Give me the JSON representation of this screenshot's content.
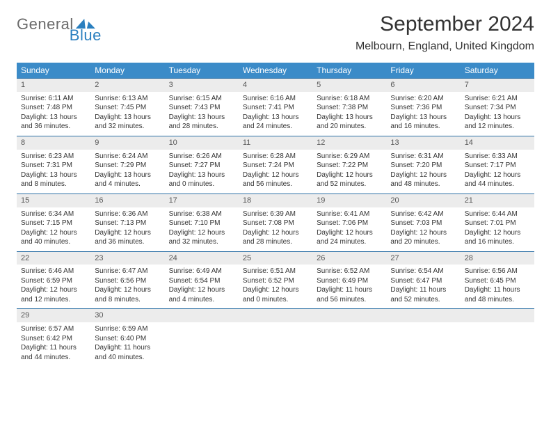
{
  "logo": {
    "general": "General",
    "blue": "Blue"
  },
  "header": {
    "title": "September 2024",
    "location": "Melbourn, England, United Kingdom"
  },
  "style": {
    "header_bg": "#3b8bc8",
    "header_text": "#ffffff",
    "row_border": "#2a6fa5",
    "daynum_bg": "#ececec",
    "body_text": "#333333"
  },
  "day_headers": [
    "Sunday",
    "Monday",
    "Tuesday",
    "Wednesday",
    "Thursday",
    "Friday",
    "Saturday"
  ],
  "weeks": [
    [
      {
        "n": "1",
        "sr": "Sunrise: 6:11 AM",
        "ss": "Sunset: 7:48 PM",
        "dl1": "Daylight: 13 hours",
        "dl2": "and 36 minutes."
      },
      {
        "n": "2",
        "sr": "Sunrise: 6:13 AM",
        "ss": "Sunset: 7:45 PM",
        "dl1": "Daylight: 13 hours",
        "dl2": "and 32 minutes."
      },
      {
        "n": "3",
        "sr": "Sunrise: 6:15 AM",
        "ss": "Sunset: 7:43 PM",
        "dl1": "Daylight: 13 hours",
        "dl2": "and 28 minutes."
      },
      {
        "n": "4",
        "sr": "Sunrise: 6:16 AM",
        "ss": "Sunset: 7:41 PM",
        "dl1": "Daylight: 13 hours",
        "dl2": "and 24 minutes."
      },
      {
        "n": "5",
        "sr": "Sunrise: 6:18 AM",
        "ss": "Sunset: 7:38 PM",
        "dl1": "Daylight: 13 hours",
        "dl2": "and 20 minutes."
      },
      {
        "n": "6",
        "sr": "Sunrise: 6:20 AM",
        "ss": "Sunset: 7:36 PM",
        "dl1": "Daylight: 13 hours",
        "dl2": "and 16 minutes."
      },
      {
        "n": "7",
        "sr": "Sunrise: 6:21 AM",
        "ss": "Sunset: 7:34 PM",
        "dl1": "Daylight: 13 hours",
        "dl2": "and 12 minutes."
      }
    ],
    [
      {
        "n": "8",
        "sr": "Sunrise: 6:23 AM",
        "ss": "Sunset: 7:31 PM",
        "dl1": "Daylight: 13 hours",
        "dl2": "and 8 minutes."
      },
      {
        "n": "9",
        "sr": "Sunrise: 6:24 AM",
        "ss": "Sunset: 7:29 PM",
        "dl1": "Daylight: 13 hours",
        "dl2": "and 4 minutes."
      },
      {
        "n": "10",
        "sr": "Sunrise: 6:26 AM",
        "ss": "Sunset: 7:27 PM",
        "dl1": "Daylight: 13 hours",
        "dl2": "and 0 minutes."
      },
      {
        "n": "11",
        "sr": "Sunrise: 6:28 AM",
        "ss": "Sunset: 7:24 PM",
        "dl1": "Daylight: 12 hours",
        "dl2": "and 56 minutes."
      },
      {
        "n": "12",
        "sr": "Sunrise: 6:29 AM",
        "ss": "Sunset: 7:22 PM",
        "dl1": "Daylight: 12 hours",
        "dl2": "and 52 minutes."
      },
      {
        "n": "13",
        "sr": "Sunrise: 6:31 AM",
        "ss": "Sunset: 7:20 PM",
        "dl1": "Daylight: 12 hours",
        "dl2": "and 48 minutes."
      },
      {
        "n": "14",
        "sr": "Sunrise: 6:33 AM",
        "ss": "Sunset: 7:17 PM",
        "dl1": "Daylight: 12 hours",
        "dl2": "and 44 minutes."
      }
    ],
    [
      {
        "n": "15",
        "sr": "Sunrise: 6:34 AM",
        "ss": "Sunset: 7:15 PM",
        "dl1": "Daylight: 12 hours",
        "dl2": "and 40 minutes."
      },
      {
        "n": "16",
        "sr": "Sunrise: 6:36 AM",
        "ss": "Sunset: 7:13 PM",
        "dl1": "Daylight: 12 hours",
        "dl2": "and 36 minutes."
      },
      {
        "n": "17",
        "sr": "Sunrise: 6:38 AM",
        "ss": "Sunset: 7:10 PM",
        "dl1": "Daylight: 12 hours",
        "dl2": "and 32 minutes."
      },
      {
        "n": "18",
        "sr": "Sunrise: 6:39 AM",
        "ss": "Sunset: 7:08 PM",
        "dl1": "Daylight: 12 hours",
        "dl2": "and 28 minutes."
      },
      {
        "n": "19",
        "sr": "Sunrise: 6:41 AM",
        "ss": "Sunset: 7:06 PM",
        "dl1": "Daylight: 12 hours",
        "dl2": "and 24 minutes."
      },
      {
        "n": "20",
        "sr": "Sunrise: 6:42 AM",
        "ss": "Sunset: 7:03 PM",
        "dl1": "Daylight: 12 hours",
        "dl2": "and 20 minutes."
      },
      {
        "n": "21",
        "sr": "Sunrise: 6:44 AM",
        "ss": "Sunset: 7:01 PM",
        "dl1": "Daylight: 12 hours",
        "dl2": "and 16 minutes."
      }
    ],
    [
      {
        "n": "22",
        "sr": "Sunrise: 6:46 AM",
        "ss": "Sunset: 6:59 PM",
        "dl1": "Daylight: 12 hours",
        "dl2": "and 12 minutes."
      },
      {
        "n": "23",
        "sr": "Sunrise: 6:47 AM",
        "ss": "Sunset: 6:56 PM",
        "dl1": "Daylight: 12 hours",
        "dl2": "and 8 minutes."
      },
      {
        "n": "24",
        "sr": "Sunrise: 6:49 AM",
        "ss": "Sunset: 6:54 PM",
        "dl1": "Daylight: 12 hours",
        "dl2": "and 4 minutes."
      },
      {
        "n": "25",
        "sr": "Sunrise: 6:51 AM",
        "ss": "Sunset: 6:52 PM",
        "dl1": "Daylight: 12 hours",
        "dl2": "and 0 minutes."
      },
      {
        "n": "26",
        "sr": "Sunrise: 6:52 AM",
        "ss": "Sunset: 6:49 PM",
        "dl1": "Daylight: 11 hours",
        "dl2": "and 56 minutes."
      },
      {
        "n": "27",
        "sr": "Sunrise: 6:54 AM",
        "ss": "Sunset: 6:47 PM",
        "dl1": "Daylight: 11 hours",
        "dl2": "and 52 minutes."
      },
      {
        "n": "28",
        "sr": "Sunrise: 6:56 AM",
        "ss": "Sunset: 6:45 PM",
        "dl1": "Daylight: 11 hours",
        "dl2": "and 48 minutes."
      }
    ],
    [
      {
        "n": "29",
        "sr": "Sunrise: 6:57 AM",
        "ss": "Sunset: 6:42 PM",
        "dl1": "Daylight: 11 hours",
        "dl2": "and 44 minutes."
      },
      {
        "n": "30",
        "sr": "Sunrise: 6:59 AM",
        "ss": "Sunset: 6:40 PM",
        "dl1": "Daylight: 11 hours",
        "dl2": "and 40 minutes."
      },
      {
        "empty": true
      },
      {
        "empty": true
      },
      {
        "empty": true
      },
      {
        "empty": true
      },
      {
        "empty": true
      }
    ]
  ]
}
